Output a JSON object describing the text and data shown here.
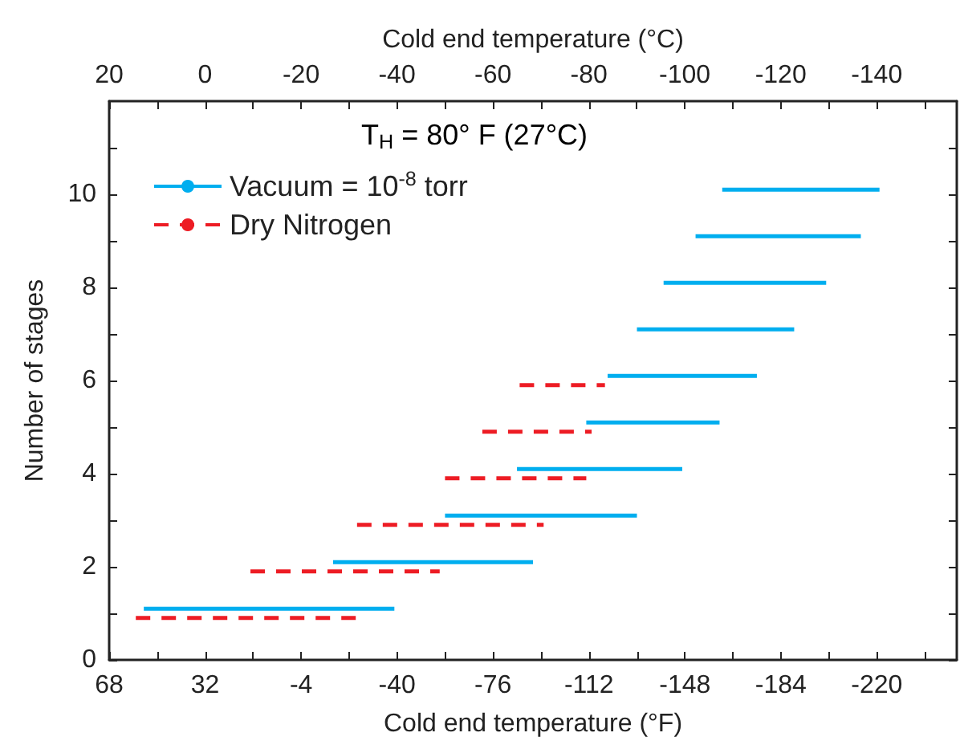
{
  "chart_data": {
    "type": "line",
    "xlabel": "Cold end temperature (°F)",
    "x2label": "Cold end temperature (°C)",
    "ylabel": "Number of stages",
    "annotations": [
      "T$_{H}$ = 80° F (27°C)"
    ],
    "xlim": [
      68,
      -250
    ],
    "xticks": [
      68,
      {
        "value": 50,
        "label": null
      },
      32,
      {
        "value": 14,
        "label": null
      },
      -4,
      {
        "value": -22,
        "label": null
      },
      -40,
      {
        "value": -58,
        "label": null
      },
      -76,
      {
        "value": -94,
        "label": null
      },
      -112,
      {
        "value": -130,
        "label": null
      },
      -148,
      {
        "value": -166,
        "label": null
      },
      -184,
      {
        "value": -202,
        "label": null
      },
      -220,
      {
        "value": -238,
        "label": null
      }
    ],
    "x2lim": [
      20,
      -156.7
    ],
    "x2ticks": [
      20,
      {
        "value": 10,
        "label": null
      },
      0,
      {
        "value": -10,
        "label": null
      },
      -20,
      {
        "value": -30,
        "label": null
      },
      -40,
      {
        "value": -50,
        "label": null
      },
      -60,
      {
        "value": -70,
        "label": null
      },
      -80,
      {
        "value": -90,
        "label": null
      },
      -100,
      {
        "value": -110,
        "label": null
      },
      -120,
      {
        "value": -130,
        "label": null
      },
      -140,
      {
        "value": -150,
        "label": null
      }
    ],
    "ylim": [
      0,
      12
    ],
    "yticks": [
      0,
      {
        "value": 1,
        "label": null
      },
      2,
      {
        "value": 3,
        "label": null
      },
      4,
      {
        "value": 5,
        "label": null
      },
      6,
      {
        "value": 7,
        "label": null
      },
      8,
      {
        "value": 9,
        "label": null
      },
      10,
      {
        "value": 11,
        "label": null
      }
    ],
    "grid": false,
    "legend": "top left",
    "marker": "none",
    "series": [
      {
        "name": "Vacuum = 10$^{-8}$ torr",
        "color": "#00aeef",
        "line_style": "solid",
        "x": [
          55,
          -39,
          null,
          -16,
          -91,
          null,
          -58,
          -130,
          null,
          -85,
          -147,
          null,
          -111,
          -161,
          null,
          -119,
          -175,
          null,
          -130,
          -189,
          null,
          -140,
          -201,
          null,
          -152,
          -214,
          null,
          -162,
          -221
        ],
        "values": [
          1.1,
          1.1,
          null,
          2.1,
          2.1,
          null,
          3.1,
          3.1,
          null,
          4.1,
          4.1,
          null,
          5.1,
          5.1,
          null,
          6.1,
          6.1,
          null,
          7.1,
          7.1,
          null,
          8.1,
          8.1,
          null,
          9.1,
          9.1,
          null,
          10.1,
          10.1
        ]
      },
      {
        "name": "Dry Nitrogen",
        "color": "#ed1c24",
        "line_style": "dashed",
        "x": [
          58,
          -26,
          null,
          15,
          -56,
          null,
          -25,
          -95,
          null,
          -58,
          -111,
          null,
          -72,
          -113,
          null,
          -86,
          -118
        ],
        "values": [
          0.9,
          0.9,
          null,
          1.9,
          1.9,
          null,
          2.9,
          2.9,
          null,
          3.9,
          3.9,
          null,
          4.9,
          4.9,
          null,
          5.9,
          5.9
        ]
      }
    ]
  }
}
